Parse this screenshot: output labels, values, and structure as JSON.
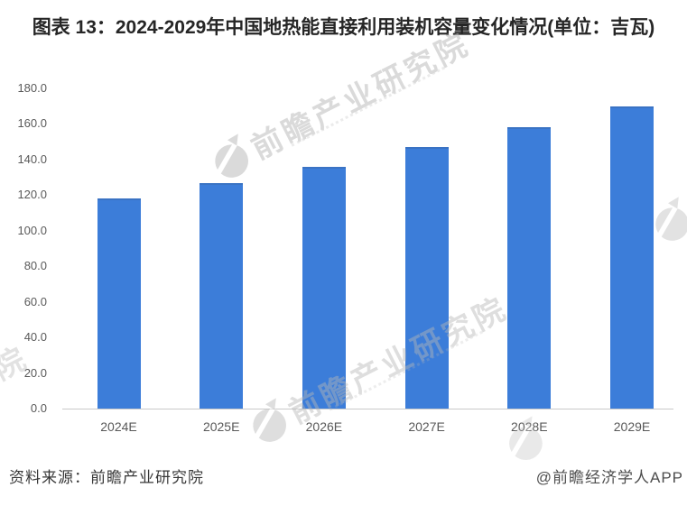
{
  "title": "图表 13：2024-2029年中国地热能直接利用装机容量变化情况(单位：吉瓦)",
  "chart_data": {
    "type": "bar",
    "title": "图表 13：2024-2029年中国地热能直接利用装机容量变化情况(单位：吉瓦)",
    "categories": [
      "2024E",
      "2025E",
      "2026E",
      "2027E",
      "2028E",
      "2029E"
    ],
    "values": [
      118,
      127,
      136,
      147,
      158,
      170
    ],
    "unit": "吉瓦",
    "xlabel": "",
    "ylabel": "",
    "ylim": [
      0,
      180
    ],
    "ytick_step": 20,
    "ytick_decimals": 1,
    "grid": false,
    "legend_position": "none",
    "bar_color": "#3C7DD9"
  },
  "footer": {
    "source": "资料来源：前瞻产业研究院",
    "credit": "@前瞻经济学人APP"
  },
  "watermark": {
    "text": "前瞻产业研究院",
    "logo": "qianzhan-logo"
  },
  "colors": {
    "bar": "#3C7DD9",
    "axis_line": "#c9c9c9",
    "tick_text": "#595959",
    "title_text": "#262626",
    "watermark": "#b7b7b7",
    "background": "#ffffff"
  }
}
